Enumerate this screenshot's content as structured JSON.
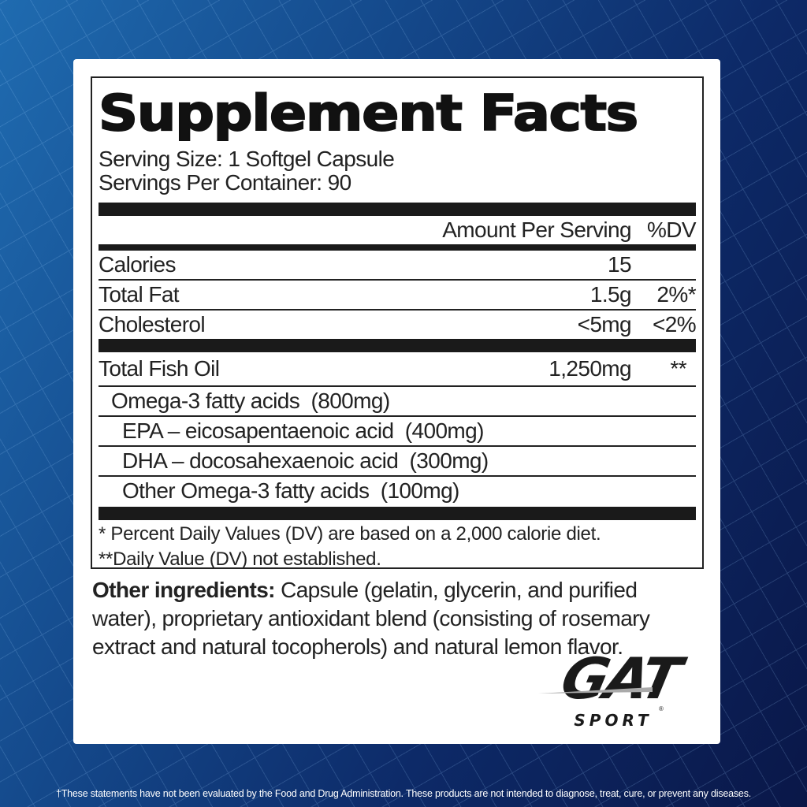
{
  "label": {
    "title": "Supplement Facts",
    "serving_size": "Serving Size: 1 Softgel Capsule",
    "servings_per_container": "Servings Per Container: 90",
    "header": {
      "amount": "Amount Per Serving",
      "dv": "%DV"
    },
    "rows": [
      {
        "name": "Calories",
        "amount": "15",
        "dv": ""
      },
      {
        "name": "Total Fat",
        "amount": "1.5g",
        "dv": "2%*"
      },
      {
        "name": "Cholesterol",
        "amount": "<5mg",
        "dv": "<2%"
      }
    ],
    "fish_oil": {
      "name": "Total Fish Oil",
      "amount": "1,250mg",
      "dv": "**"
    },
    "sub_rows": [
      "Omega-3 fatty acids  (800mg)",
      "EPA – eicosapentaenoic acid  (400mg)",
      "DHA – docosahexaenoic acid  (300mg)",
      "Other Omega-3 fatty acids  (100mg)"
    ],
    "footnotes": [
      "* Percent Daily Values (DV) are based on a 2,000 calorie diet.",
      "**Daily Value (DV) not established."
    ]
  },
  "other_ingredients": {
    "label": "Other ingredients:",
    "text": " Capsule (gelatin, glycerin, and purified water), proprietary antioxidant blend (consisting of rosemary extract and natural tocopherols) and natural lemon flavor."
  },
  "logo": {
    "brand": "GAT",
    "sub": "SPORT"
  },
  "disclaimer": "†These statements have not been evaluated by the Food and Drug Administration. These products are not intended to diagnose, treat, cure, or prevent any diseases."
}
